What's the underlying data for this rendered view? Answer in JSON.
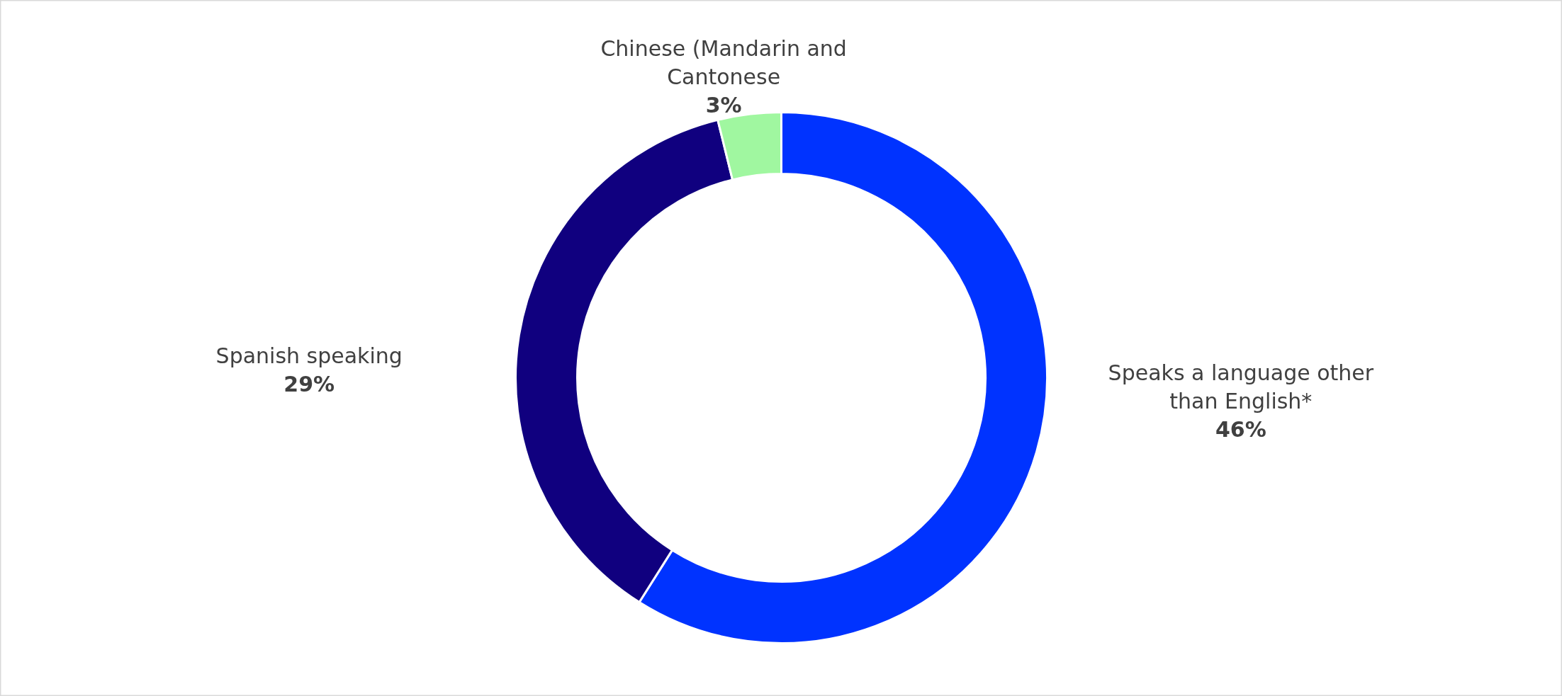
{
  "chart_data": {
    "type": "donut",
    "categories": [
      "Speaks a language other than English*",
      "Spanish speaking",
      "Chinese (Mandarin and Cantonese"
    ],
    "values": [
      46,
      29,
      3
    ],
    "colors": [
      "#0033ff",
      "#10007f",
      "#a0f7a0"
    ],
    "value_labels": [
      "46%",
      "29%",
      "3%"
    ]
  }
}
